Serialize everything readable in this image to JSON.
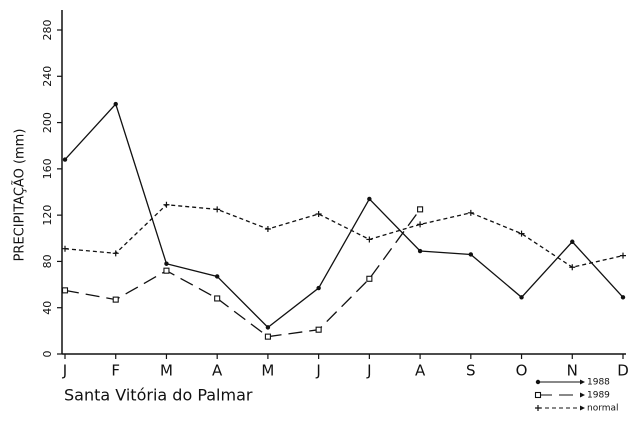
{
  "chart_data": {
    "type": "line",
    "y_label": "PRECIPITAÇÃO (mm)",
    "location": "Santa Vitória do Palmar",
    "categories": [
      "J",
      "F",
      "M",
      "A",
      "M",
      "J",
      "J",
      "A",
      "S",
      "O",
      "N",
      "D"
    ],
    "ylim": [
      0,
      280
    ],
    "yticks": [
      0,
      40,
      80,
      120,
      160,
      200,
      240,
      280
    ],
    "color": "#111111",
    "series": [
      {
        "name": "1988",
        "color": "#111111",
        "dash": "none",
        "marker": "dot",
        "values": [
          168,
          216,
          78,
          67,
          23,
          57,
          134,
          89,
          86,
          49,
          97,
          49
        ]
      },
      {
        "name": "1989",
        "color": "#111111",
        "dash": "14 7",
        "marker": "square",
        "values": [
          55,
          47,
          72,
          48,
          15,
          21,
          65,
          125,
          null,
          null,
          null,
          null
        ]
      },
      {
        "name": "normal",
        "color": "#111111",
        "dash": "4 3",
        "marker": "plus",
        "values": [
          91,
          87,
          129,
          125,
          108,
          121,
          99,
          112,
          122,
          104,
          75,
          85
        ]
      }
    ],
    "legend": "bottom-right",
    "grid": false
  }
}
